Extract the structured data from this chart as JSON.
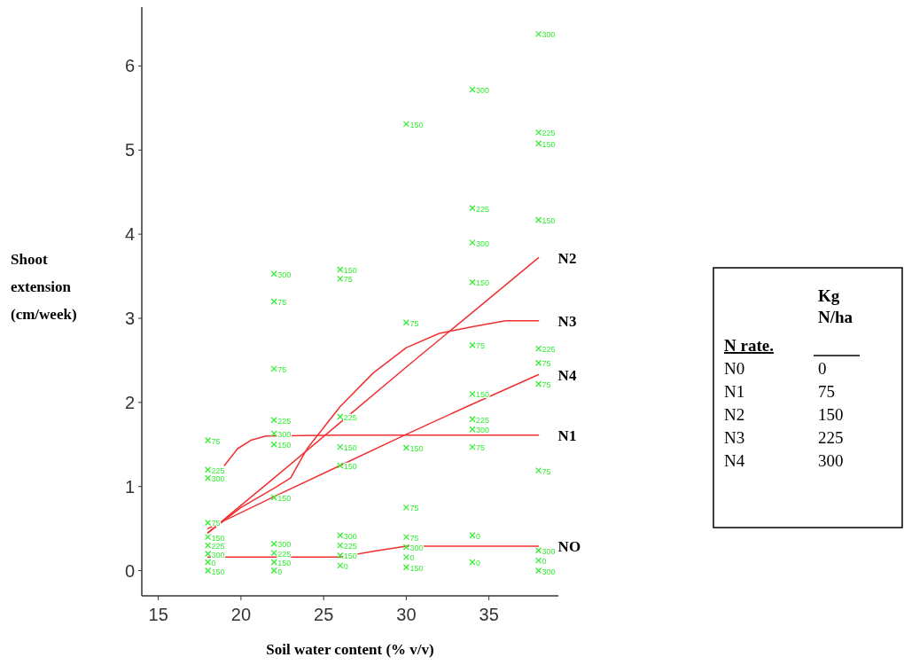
{
  "chart_data": {
    "type": "scatter",
    "xlabel": "Soil water content (% v/v)",
    "ylabel": "Shoot extension (cm/week)",
    "xlim": [
      14,
      39.2
    ],
    "ylim": [
      -0.3,
      6.7
    ],
    "xticks": [
      15,
      20,
      25,
      30,
      35
    ],
    "yticks": [
      0,
      1,
      2,
      3,
      4,
      5,
      6
    ],
    "grid": false,
    "series": [
      {
        "name": "0",
        "color": "#33ee33",
        "marker": "cross",
        "x": [
          18,
          22,
          26,
          30,
          34,
          34,
          38
        ],
        "values": [
          0.1,
          0.0,
          0.06,
          0.16,
          0.42,
          0.1,
          0.12
        ]
      },
      {
        "name": "75",
        "color": "#33ee33",
        "marker": "cross",
        "x": [
          18,
          18,
          22,
          22,
          26,
          30,
          30,
          30,
          34,
          34,
          38,
          38,
          38
        ],
        "values": [
          1.55,
          0.57,
          3.2,
          2.4,
          3.47,
          2.95,
          0.75,
          0.4,
          2.68,
          1.47,
          2.47,
          2.22,
          1.19
        ]
      },
      {
        "name": "150",
        "color": "#33ee33",
        "marker": "cross",
        "x": [
          18,
          18,
          22,
          22,
          22,
          26,
          26,
          26,
          26,
          30,
          30,
          30,
          34,
          34,
          38,
          38
        ],
        "values": [
          0.4,
          0.0,
          1.5,
          0.87,
          0.1,
          3.58,
          1.47,
          1.25,
          0.18,
          5.31,
          1.46,
          0.04,
          3.43,
          2.1,
          5.08,
          4.17
        ]
      },
      {
        "name": "225",
        "color": "#33ee33",
        "marker": "cross",
        "x": [
          18,
          18,
          22,
          22,
          26,
          26,
          34,
          34,
          38,
          38
        ],
        "values": [
          1.2,
          0.3,
          1.79,
          0.21,
          1.83,
          0.3,
          4.31,
          1.8,
          5.21,
          2.64
        ]
      },
      {
        "name": "300",
        "color": "#33ee33",
        "marker": "cross",
        "x": [
          18,
          18,
          22,
          22,
          22,
          26,
          30,
          34,
          34,
          34,
          38,
          38,
          38
        ],
        "values": [
          1.1,
          0.2,
          3.53,
          1.63,
          0.32,
          0.42,
          0.28,
          5.72,
          3.9,
          1.68,
          6.38,
          0.24,
          0.0
        ]
      },
      {
        "type": "line",
        "name": "NO",
        "color": "#f03030",
        "marker": "none",
        "x": [
          18,
          22,
          26,
          28,
          30,
          34,
          38
        ],
        "values": [
          0.16,
          0.16,
          0.16,
          0.23,
          0.29,
          0.29,
          0.29
        ]
      },
      {
        "type": "line",
        "name": "N1",
        "color": "#f03030",
        "marker": "none",
        "x": [
          19,
          19.8,
          20.6,
          21.5,
          26,
          30,
          34,
          38
        ],
        "values": [
          1.25,
          1.45,
          1.55,
          1.6,
          1.61,
          1.61,
          1.61,
          1.61
        ]
      },
      {
        "type": "line",
        "name": "N2",
        "color": "#f03030",
        "marker": "none",
        "x": [
          18,
          22,
          26,
          30,
          34,
          38
        ],
        "values": [
          0.45,
          1.1,
          1.76,
          2.42,
          3.07,
          3.72
        ]
      },
      {
        "type": "line",
        "name": "N3",
        "color": "#f03030",
        "marker": "none",
        "x": [
          18,
          20,
          22,
          23,
          24,
          26,
          28,
          30,
          32,
          34,
          36,
          38
        ],
        "values": [
          0.45,
          0.75,
          0.98,
          1.1,
          1.45,
          1.95,
          2.35,
          2.65,
          2.82,
          2.9,
          2.97,
          2.97
        ]
      },
      {
        "type": "line",
        "name": "N4",
        "color": "#f03030",
        "marker": "none",
        "x": [
          18,
          22,
          26,
          30,
          34,
          38
        ],
        "values": [
          0.5,
          0.88,
          1.25,
          1.62,
          1.98,
          2.33
        ]
      }
    ],
    "annotations": [
      "N rate.",
      "Kg N/ha",
      "N0",
      "0",
      "N1",
      "75",
      "N2",
      "150",
      "N3",
      "225",
      "N4",
      "300"
    ]
  }
}
